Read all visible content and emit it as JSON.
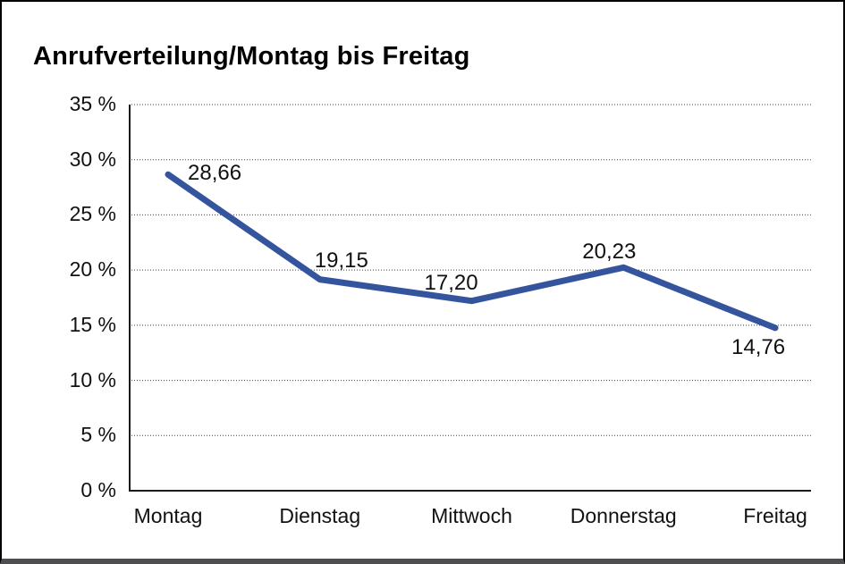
{
  "window": {
    "background_color": "#ffffff",
    "frame_border_color": "#000000",
    "frame_bottom_edge_color": "#4e4e50"
  },
  "chart_data": {
    "type": "line",
    "title": "Anrufverteilung/Montag bis Freitag",
    "categories": [
      "Montag",
      "Dienstag",
      "Mittwoch",
      "Donnerstag",
      "Freitag"
    ],
    "values": [
      28.66,
      19.15,
      17.2,
      20.23,
      14.76
    ],
    "value_labels": [
      "28,66",
      "19,15",
      "17,20",
      "20,23",
      "14,76"
    ],
    "series_name": "Anrufverteilung",
    "xlabel": "",
    "ylabel": "",
    "y_ticks": [
      "35 %",
      "30 %",
      "25 %",
      "20 %",
      "15 %",
      "10 %",
      "5 %",
      "0 %"
    ],
    "y_tick_values": [
      35,
      30,
      25,
      20,
      15,
      10,
      5,
      0
    ],
    "ylim": [
      0,
      35
    ],
    "grid": "horizontal-dotted",
    "legend": "none",
    "line_color": "#34559D",
    "axis_color": "#1a1a1a",
    "gridline_color": "#3d3d3d",
    "text_color": "#111111"
  }
}
